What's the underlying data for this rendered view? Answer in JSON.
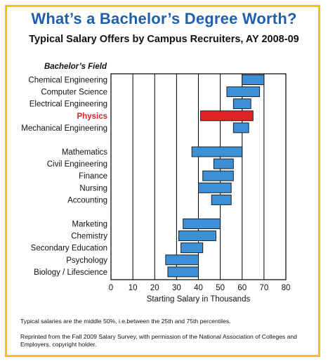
{
  "header": {
    "title": "What’s a Bachelor’s Degree Worth?",
    "subtitle": "Typical Salary Offers by Campus Recruiters, AY 2008-09"
  },
  "chart_data": {
    "type": "bar",
    "orientation": "horizontal-range",
    "category_header": "Bachelor’s Field",
    "xlabel": "Starting Salary in Thousands",
    "ylabel": "",
    "xlim": [
      0,
      80
    ],
    "xticks": [
      0,
      10,
      20,
      30,
      40,
      50,
      60,
      70,
      80
    ],
    "grid": "vertical",
    "colors": {
      "default": "#3d8fd6",
      "highlight": "#e02424",
      "highlight_label": "#e02424"
    },
    "categories": [
      {
        "name": "Chemical Engineering",
        "low": 60,
        "high": 70,
        "group": 0
      },
      {
        "name": "Computer Science",
        "low": 53,
        "high": 68,
        "group": 0
      },
      {
        "name": "Electrical Engineering",
        "low": 56,
        "high": 64,
        "group": 0
      },
      {
        "name": "Physics",
        "low": 41,
        "high": 65,
        "group": 0,
        "highlight": true
      },
      {
        "name": "Mechanical Engineering",
        "low": 56,
        "high": 63,
        "group": 0
      },
      {
        "name": "Mathematics",
        "low": 37,
        "high": 60,
        "group": 1
      },
      {
        "name": "Civil Engineering",
        "low": 47,
        "high": 56,
        "group": 1
      },
      {
        "name": "Finance",
        "low": 42,
        "high": 56,
        "group": 1
      },
      {
        "name": "Nursing",
        "low": 40,
        "high": 55,
        "group": 1
      },
      {
        "name": "Accounting",
        "low": 46,
        "high": 55,
        "group": 1
      },
      {
        "name": "Marketing",
        "low": 33,
        "high": 50,
        "group": 2
      },
      {
        "name": "Chemistry",
        "low": 31,
        "high": 48,
        "group": 2
      },
      {
        "name": "Secondary Education",
        "low": 32,
        "high": 42,
        "group": 2
      },
      {
        "name": "Psychology",
        "low": 25,
        "high": 40,
        "group": 2
      },
      {
        "name": "Biology / Lifescience",
        "low": 26,
        "high": 40,
        "group": 2
      }
    ]
  },
  "notes": {
    "footnote": "Typical salaries are the middle 50%, i.e.between the 25th and 75th percentiles.",
    "credit": "Reprinted from the Fall 2009 Salary Survey, with permission of the National Association of Colleges and Employers, copyright holder."
  }
}
